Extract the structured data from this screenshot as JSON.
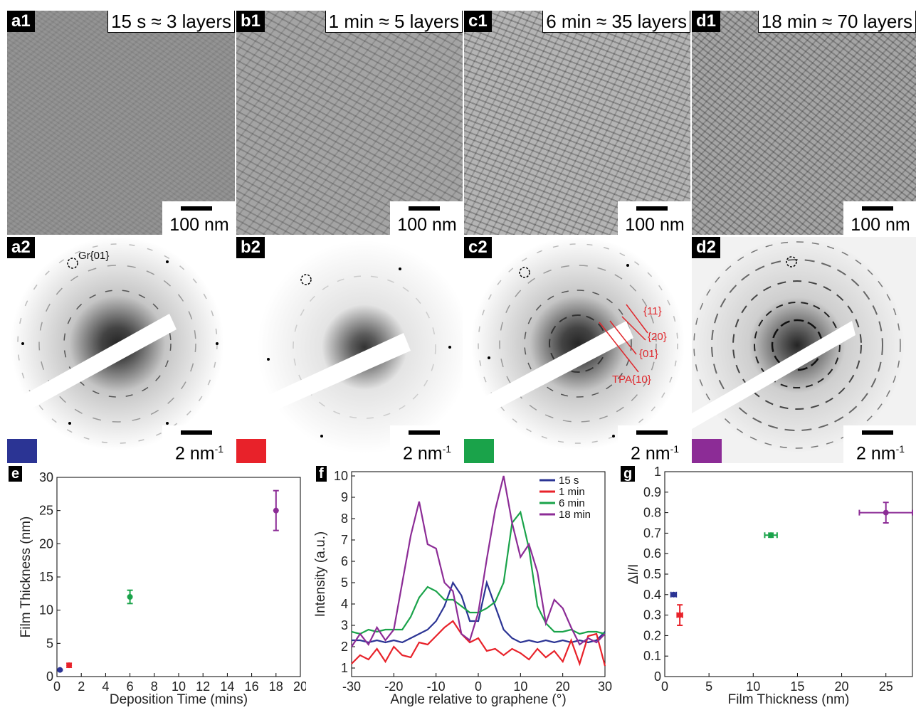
{
  "panels_top": [
    {
      "tag": "a1",
      "title": "15 s ≈ 3 layers",
      "scale": "100 nm"
    },
    {
      "tag": "b1",
      "title": "1 min ≈ 5 layers",
      "scale": "100 nm"
    },
    {
      "tag": "c1",
      "title": "6 min ≈ 35 layers",
      "scale": "100 nm"
    },
    {
      "tag": "d1",
      "title": "18 min ≈ 70 layers",
      "scale": "100 nm"
    }
  ],
  "panels_diff": [
    {
      "tag": "a2",
      "scale": "2 nm",
      "scale_exp": "-1",
      "swatch": "#2b3494"
    },
    {
      "tag": "b2",
      "scale": "2 nm",
      "scale_exp": "-1",
      "swatch": "#e8222a"
    },
    {
      "tag": "c2",
      "scale": "2 nm",
      "scale_exp": "-1",
      "swatch": "#1aa34a"
    },
    {
      "tag": "d2",
      "scale": "2 nm",
      "scale_exp": "-1",
      "swatch": "#8c2c96"
    }
  ],
  "diff_labels": {
    "gr": "Gr{01}",
    "tpa": [
      "{11}",
      "{20}",
      "{01}",
      "TPA{10}"
    ]
  },
  "colors": {
    "s15": "#2b3494",
    "m1": "#e8222a",
    "m6": "#1aa34a",
    "m18": "#8c2c96"
  },
  "chart_data": [
    {
      "panel": "e",
      "type": "scatter",
      "xlabel": "Deposition Time (mins)",
      "ylabel": "Film Thickness (nm)",
      "xlim": [
        0,
        20
      ],
      "ylim": [
        0,
        30
      ],
      "xticks": [
        0,
        2,
        4,
        6,
        8,
        10,
        12,
        14,
        16,
        18,
        20
      ],
      "yticks": [
        0,
        5,
        10,
        15,
        20,
        25,
        30
      ],
      "series": [
        {
          "x": 0.25,
          "y": 1.0,
          "yerr": 0.1,
          "color": "#2b3494"
        },
        {
          "x": 1,
          "y": 1.7,
          "yerr": 0.3,
          "color": "#e8222a"
        },
        {
          "x": 6,
          "y": 12,
          "yerr": 1.0,
          "color": "#1aa34a"
        },
        {
          "x": 18,
          "y": 25,
          "yerr": 3.0,
          "color": "#8c2c96"
        }
      ]
    },
    {
      "panel": "f",
      "type": "line",
      "xlabel": "Angle relative to graphene (°)",
      "ylabel": "Intensity (a.u.)",
      "xlim": [
        -30,
        30
      ],
      "ylim": [
        0.6,
        10.2
      ],
      "xticks": [
        -30,
        -20,
        -10,
        0,
        10,
        20,
        30
      ],
      "yticks": [
        1,
        2,
        3,
        4,
        5,
        6,
        7,
        8,
        9,
        10
      ],
      "legend": "top-right",
      "x": [
        -30,
        -28,
        -26,
        -24,
        -22,
        -20,
        -18,
        -16,
        -14,
        -12,
        -10,
        -8,
        -6,
        -4,
        -2,
        0,
        2,
        4,
        6,
        8,
        10,
        12,
        14,
        16,
        18,
        20,
        22,
        24,
        26,
        28,
        30
      ],
      "series": [
        {
          "name": "15 s",
          "color": "#2b3494",
          "values": [
            2.3,
            2.3,
            2.2,
            2.3,
            2.2,
            2.3,
            2.2,
            2.4,
            2.6,
            2.8,
            3.2,
            3.9,
            5.0,
            4.4,
            3.2,
            3.2,
            5.0,
            3.9,
            2.8,
            2.4,
            2.2,
            2.3,
            2.2,
            2.3,
            2.2,
            2.3,
            2.2,
            2.3,
            2.2,
            2.3,
            2.7
          ]
        },
        {
          "name": "1 min",
          "color": "#e8222a",
          "values": [
            1.2,
            1.6,
            1.4,
            1.9,
            1.3,
            2.0,
            1.6,
            1.5,
            2.2,
            2.1,
            2.5,
            2.9,
            3.2,
            2.6,
            2.2,
            2.4,
            1.8,
            1.9,
            1.6,
            1.9,
            1.7,
            1.4,
            1.9,
            1.5,
            1.8,
            1.3,
            2.3,
            1.2,
            2.5,
            2.6,
            1.1
          ]
        },
        {
          "name": "6 min",
          "color": "#1aa34a",
          "values": [
            2.7,
            2.6,
            2.8,
            2.7,
            2.8,
            2.8,
            2.8,
            3.4,
            4.3,
            4.8,
            4.6,
            4.2,
            4.2,
            3.9,
            3.6,
            3.6,
            3.8,
            4.1,
            5.0,
            7.8,
            8.3,
            6.6,
            3.9,
            3.1,
            2.7,
            2.7,
            2.8,
            2.6,
            2.7,
            2.7,
            2.6
          ]
        },
        {
          "name": "18 min",
          "color": "#8c2c96",
          "values": [
            2.0,
            2.6,
            2.1,
            2.9,
            2.3,
            2.8,
            5.0,
            7.2,
            8.8,
            6.8,
            6.6,
            5.0,
            4.6,
            2.6,
            2.3,
            3.6,
            6.1,
            8.4,
            10.0,
            7.8,
            6.2,
            6.8,
            5.5,
            3.1,
            4.2,
            3.8,
            2.9,
            2.1,
            2.4,
            2.2,
            2.6
          ]
        }
      ]
    },
    {
      "panel": "g",
      "type": "scatter",
      "xlabel": "Film Thickness (nm)",
      "ylabel": "ΔI/I",
      "xlim": [
        0,
        28
      ],
      "ylim": [
        0,
        1
      ],
      "xticks": [
        0,
        5,
        10,
        15,
        20,
        25
      ],
      "yticks": [
        0,
        0.1,
        0.2,
        0.3,
        0.4,
        0.5,
        0.6,
        0.7,
        0.8,
        0.9,
        1
      ],
      "series": [
        {
          "x": 1.0,
          "y": 0.4,
          "xerr": 0.3,
          "yerr": 0.0,
          "color": "#2b3494"
        },
        {
          "x": 1.7,
          "y": 0.3,
          "xerr": 0.3,
          "yerr": 0.05,
          "color": "#e8222a"
        },
        {
          "x": 12,
          "y": 0.69,
          "xerr": 0.7,
          "yerr": 0.01,
          "color": "#1aa34a"
        },
        {
          "x": 25,
          "y": 0.8,
          "xerr": 3.0,
          "yerr": 0.05,
          "color": "#8c2c96"
        }
      ]
    }
  ],
  "chart_labels": {
    "e": "e",
    "f": "f",
    "g": "g"
  }
}
